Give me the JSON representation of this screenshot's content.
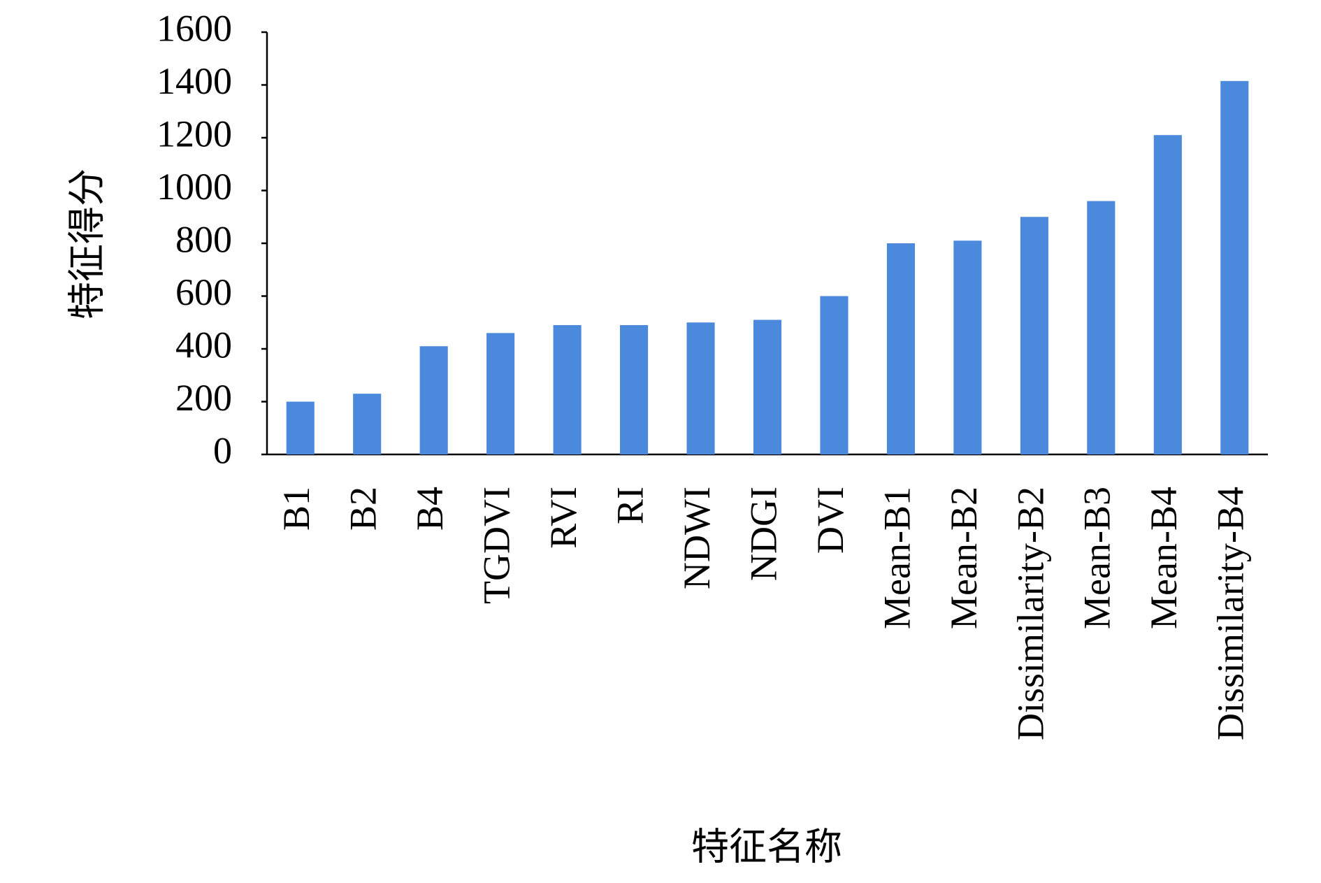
{
  "chart_data": {
    "type": "bar",
    "x_label": "特征名称",
    "y_label": "特征得分",
    "categories": [
      "B1",
      "B2",
      "B4",
      "TGDVI",
      "RVI",
      "RI",
      "NDWI",
      "NDGI",
      "DVI",
      "Mean-B1",
      "Mean-B2",
      "Dissimilarity-B2",
      "Mean-B3",
      "Mean-B4",
      "Dissimilarity-B4"
    ],
    "values": [
      200,
      230,
      410,
      460,
      490,
      490,
      500,
      510,
      600,
      800,
      810,
      900,
      960,
      1210,
      1415
    ],
    "color": "#4a89dc",
    "ylim": [
      0,
      1600
    ],
    "yticks": [
      0,
      200,
      400,
      600,
      800,
      1000,
      1200,
      1400,
      1600
    ],
    "grid": false
  }
}
